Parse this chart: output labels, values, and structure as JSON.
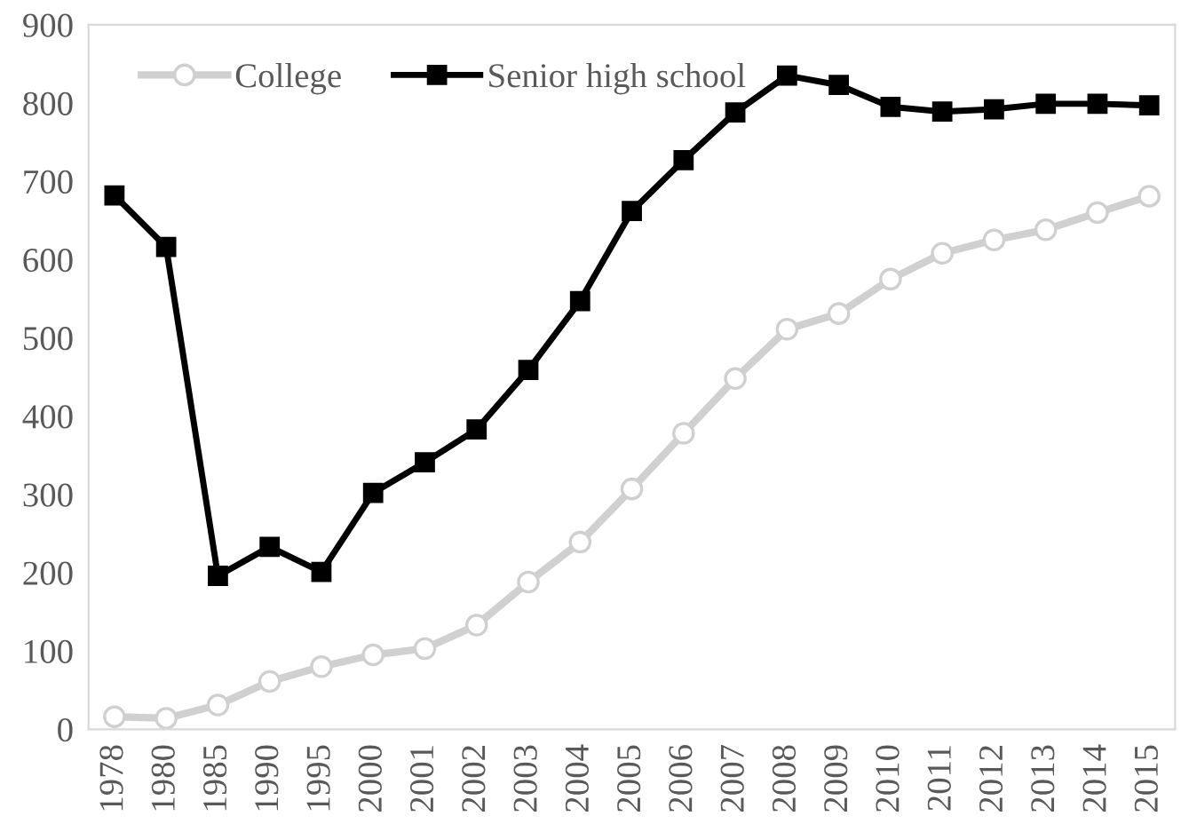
{
  "chart_data": {
    "type": "line",
    "categories": [
      "1978",
      "1980",
      "1985",
      "1990",
      "1995",
      "2000",
      "2001",
      "2002",
      "2003",
      "2004",
      "2005",
      "2006",
      "2007",
      "2008",
      "2009",
      "2010",
      "2011",
      "2012",
      "2013",
      "2014",
      "2015"
    ],
    "series": [
      {
        "name": "College",
        "color": "#d0d0d0",
        "marker": "circle",
        "values": [
          16,
          14,
          31,
          61,
          80,
          95,
          103,
          133,
          188,
          239,
          307,
          378,
          448,
          511,
          531,
          575,
          608,
          625,
          638,
          660,
          681
        ]
      },
      {
        "name": "Senior high school",
        "color": "#000000",
        "marker": "square",
        "values": [
          682,
          616,
          196,
          233,
          201,
          302,
          341,
          383,
          459,
          547,
          662,
          727,
          788,
          835,
          823,
          795,
          789,
          792,
          799,
          799,
          797
        ]
      }
    ],
    "ylim": [
      0,
      900
    ],
    "yticks": [
      0,
      100,
      200,
      300,
      400,
      500,
      600,
      700,
      800,
      900
    ],
    "grid": false,
    "legend": "top left"
  }
}
